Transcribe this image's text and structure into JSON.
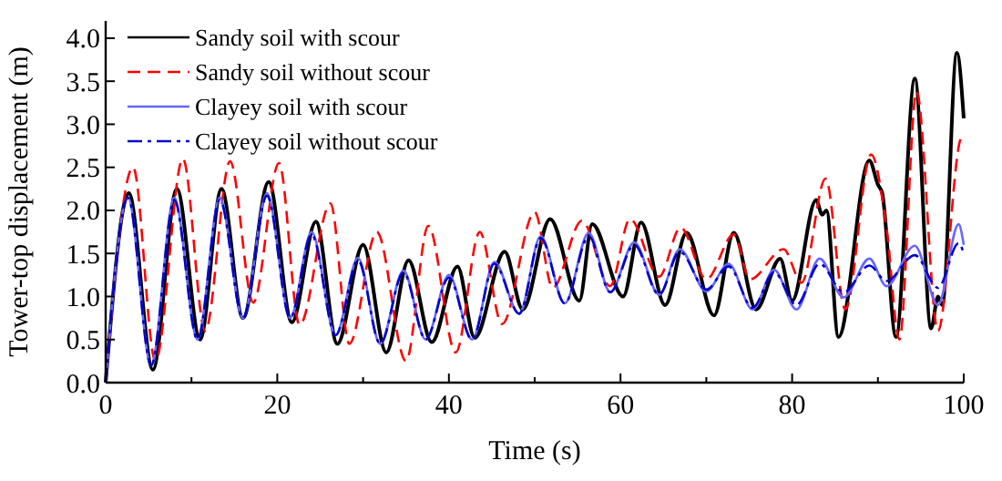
{
  "chart_data": {
    "type": "line",
    "xlabel": "Time (s)",
    "ylabel": "Tower-top displacement (m)",
    "xlim": [
      0,
      100
    ],
    "ylim": [
      0,
      4.2
    ],
    "xticks": [
      0,
      {
        "value": 10,
        "label": null
      },
      20,
      {
        "value": 30,
        "label": null
      },
      40,
      {
        "value": 50,
        "label": null
      },
      60,
      {
        "value": 70,
        "label": null
      },
      80,
      {
        "value": 90,
        "label": null
      },
      100
    ],
    "yticks": [
      {
        "value": 0,
        "label": "0.0"
      },
      {
        "value": 0.5,
        "label": "0.5"
      },
      {
        "value": 1,
        "label": "1.0"
      },
      {
        "value": 1.5,
        "label": "1.5"
      },
      {
        "value": 2,
        "label": "2.0"
      },
      {
        "value": 2.5,
        "label": "2.5"
      },
      {
        "value": 3,
        "label": "3.0"
      },
      {
        "value": 3.5,
        "label": "3.5"
      },
      {
        "value": 4,
        "label": "4.0"
      }
    ],
    "grid": false,
    "legend": "top left",
    "marker": "none",
    "series": [
      {
        "name": "Sandy soil with scour",
        "color": "#000000",
        "line_style": "solid",
        "x": [
          0,
          2.7,
          5.5,
          8.3,
          11,
          13.5,
          16,
          19,
          21.7,
          24.5,
          27,
          30,
          32.7,
          35.3,
          38,
          41,
          43,
          46.5,
          48.6,
          51.8,
          55.2,
          56.7,
          60.3,
          62.4,
          65.2,
          67.7,
          70.9,
          73.2,
          75.8,
          78.6,
          80,
          82.8,
          83.5,
          84,
          85.4,
          89,
          90,
          90.5,
          92.1,
          94.3,
          96.2,
          97,
          97.5,
          99.2,
          100
        ],
        "values": [
          0,
          2.2,
          0.15,
          2.25,
          0.5,
          2.25,
          0.75,
          2.33,
          0.7,
          1.87,
          0.45,
          1.6,
          0.35,
          1.42,
          0.47,
          1.35,
          0.52,
          1.52,
          0.85,
          1.9,
          0.95,
          1.84,
          1.0,
          1.86,
          0.9,
          1.74,
          0.78,
          1.74,
          0.85,
          1.44,
          0.95,
          2.12,
          1.95,
          2.0,
          0.53,
          2.58,
          2.3,
          2.2,
          0.53,
          3.53,
          0.63,
          1.0,
          0.9,
          3.83,
          3.07
        ]
      },
      {
        "name": "Sandy soil without scour",
        "color": "#ff0000",
        "line_style": "dashed",
        "x": [
          0,
          3.2,
          5.8,
          9,
          11.6,
          14.5,
          17.2,
          20.2,
          22.6,
          26.2,
          28.4,
          31.6,
          35,
          37.6,
          40.8,
          43.6,
          46.2,
          50,
          52.1,
          55.5,
          58.8,
          61.1,
          64.5,
          67,
          70,
          73.2,
          75.1,
          79,
          81.1,
          83.9,
          86.2,
          89.2,
          91,
          92.5,
          94.5,
          97,
          99.6,
          100
        ],
        "values": [
          0,
          2.5,
          0.25,
          2.6,
          0.6,
          2.57,
          0.93,
          2.55,
          0.67,
          2.08,
          0.45,
          1.75,
          0.25,
          1.82,
          0.35,
          1.75,
          0.68,
          1.98,
          1.1,
          1.88,
          1.12,
          1.9,
          1.23,
          1.8,
          1.2,
          1.72,
          1.2,
          1.55,
          1.16,
          2.37,
          0.85,
          2.65,
          1.8,
          0.5,
          3.38,
          0.6,
          2.82,
          2.9
        ]
      },
      {
        "name": "Clayey soil with scour",
        "color": "#6666ff",
        "line_style": "solid",
        "x": [
          0,
          2.6,
          5.3,
          8,
          10.7,
          13.3,
          16,
          18.8,
          21.5,
          24,
          26.8,
          29.4,
          32,
          34.7,
          37.3,
          40,
          42.7,
          45.3,
          48.2,
          50.7,
          53.5,
          56.3,
          58.8,
          61.6,
          64.5,
          66.9,
          70,
          72.6,
          75.4,
          77.9,
          80.5,
          83.2,
          86,
          89,
          91,
          94.3,
          97,
          99.4,
          100
        ],
        "values": [
          0,
          2.15,
          0.2,
          2.15,
          0.5,
          2.15,
          0.75,
          2.2,
          0.75,
          1.75,
          0.55,
          1.45,
          0.45,
          1.3,
          0.5,
          1.25,
          0.5,
          1.4,
          0.8,
          1.7,
          0.92,
          1.74,
          1.05,
          1.63,
          1.02,
          1.55,
          1.06,
          1.38,
          0.85,
          1.31,
          0.85,
          1.44,
          0.99,
          1.44,
          1.12,
          1.59,
          0.9,
          1.84,
          1.6
        ]
      },
      {
        "name": "Clayey soil without scour",
        "color": "#0000cc",
        "line_style": "dashdot",
        "x": [
          0,
          2.6,
          5.3,
          8,
          10.7,
          13.3,
          16,
          18.8,
          21.5,
          24,
          26.8,
          29.4,
          32,
          34.7,
          37.3,
          40,
          42.7,
          45.3,
          48.2,
          50.7,
          53.5,
          56.3,
          58.8,
          61.6,
          64.5,
          66.9,
          70,
          72.6,
          75.4,
          77.9,
          80.5,
          83.2,
          86,
          89,
          91,
          94.3,
          97,
          99.4,
          100
        ],
        "values": [
          0,
          2.15,
          0.2,
          2.12,
          0.5,
          2.12,
          0.75,
          2.17,
          0.75,
          1.72,
          0.55,
          1.42,
          0.45,
          1.28,
          0.5,
          1.22,
          0.5,
          1.38,
          0.8,
          1.68,
          0.92,
          1.7,
          1.05,
          1.6,
          1.02,
          1.52,
          1.08,
          1.35,
          0.87,
          1.28,
          0.9,
          1.38,
          1.05,
          1.36,
          1.18,
          1.48,
          1.1,
          1.62,
          1.5
        ]
      }
    ]
  }
}
